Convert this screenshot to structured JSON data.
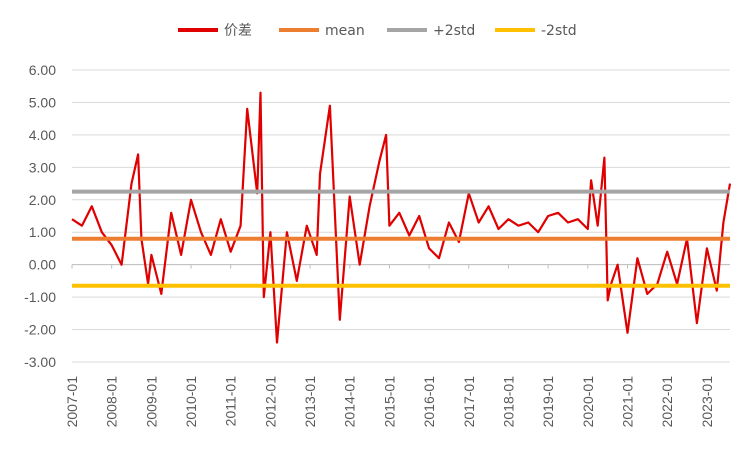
{
  "chart_data": {
    "type": "line",
    "title": "",
    "xlabel": "",
    "ylabel": "",
    "ylim": [
      -3.0,
      6.0
    ],
    "yticks": [
      "6.00",
      "5.00",
      "4.00",
      "3.00",
      "2.00",
      "1.00",
      "0.00",
      "-1.00",
      "-2.00",
      "-3.00"
    ],
    "x_range": [
      "2007-01",
      "2023-08"
    ],
    "xticks": [
      "2007-01",
      "2008-01",
      "2009-01",
      "2010-01",
      "2011-01",
      "2012-01",
      "2013-01",
      "2014-01",
      "2015-01",
      "2016-01",
      "2017-01",
      "2018-01",
      "2019-01",
      "2020-01",
      "2021-01",
      "2022-01",
      "2023-01"
    ],
    "grid": "horizontal",
    "legend_position": "top",
    "colors": {
      "spread": "#e00000",
      "mean": "#ed7d31",
      "plus2std": "#a5a5a5",
      "minus2std": "#ffc000",
      "grid": "#d9d9d9",
      "axis": "#bfbfbf"
    },
    "series": [
      {
        "name": "价差",
        "key": "spread",
        "x": [
          "2007-01",
          "2007-04",
          "2007-07",
          "2007-10",
          "2008-01",
          "2008-04",
          "2008-07",
          "2008-09",
          "2008-10",
          "2008-12",
          "2009-01",
          "2009-04",
          "2009-07",
          "2009-10",
          "2010-01",
          "2010-04",
          "2010-07",
          "2010-10",
          "2011-01",
          "2011-04",
          "2011-06",
          "2011-09",
          "2011-10",
          "2011-11",
          "2012-01",
          "2012-03",
          "2012-06",
          "2012-09",
          "2012-12",
          "2013-03",
          "2013-04",
          "2013-07",
          "2013-10",
          "2014-01",
          "2014-04",
          "2014-07",
          "2014-10",
          "2014-12",
          "2015-01",
          "2015-04",
          "2015-07",
          "2015-10",
          "2016-01",
          "2016-04",
          "2016-07",
          "2016-10",
          "2017-01",
          "2017-04",
          "2017-07",
          "2017-10",
          "2018-01",
          "2018-04",
          "2018-07",
          "2018-10",
          "2019-01",
          "2019-04",
          "2019-07",
          "2019-10",
          "2020-01",
          "2020-02",
          "2020-04",
          "2020-06",
          "2020-07",
          "2020-08",
          "2020-10",
          "2021-01",
          "2021-04",
          "2021-07",
          "2021-10",
          "2022-01",
          "2022-04",
          "2022-07",
          "2022-10",
          "2023-01",
          "2023-04",
          "2023-06",
          "2023-08"
        ],
        "values": [
          1.4,
          1.2,
          1.8,
          1.0,
          0.6,
          0.0,
          2.5,
          3.4,
          0.8,
          -0.6,
          0.3,
          -0.9,
          1.6,
          0.3,
          2.0,
          1.0,
          0.3,
          1.4,
          0.4,
          1.2,
          4.8,
          2.2,
          5.3,
          -1.0,
          1.0,
          -2.4,
          1.0,
          -0.5,
          1.2,
          0.3,
          2.8,
          4.9,
          -1.7,
          2.1,
          0.0,
          1.8,
          3.2,
          4.0,
          1.2,
          1.6,
          0.9,
          1.5,
          0.5,
          0.2,
          1.3,
          0.7,
          2.2,
          1.3,
          1.8,
          1.1,
          1.4,
          1.2,
          1.3,
          1.0,
          1.5,
          1.6,
          1.3,
          1.4,
          1.1,
          2.6,
          1.2,
          3.3,
          -1.1,
          -0.6,
          0.0,
          -2.1,
          0.2,
          -0.9,
          -0.6,
          0.4,
          -0.6,
          0.8,
          -1.8,
          0.5,
          -0.8,
          1.3,
          2.5
        ]
      },
      {
        "name": "mean",
        "key": "mean",
        "value": 0.8
      },
      {
        "name": "+2std",
        "key": "plus2std",
        "value": 2.25
      },
      {
        "name": "-2std",
        "key": "minus2std",
        "value": -0.65
      }
    ]
  }
}
